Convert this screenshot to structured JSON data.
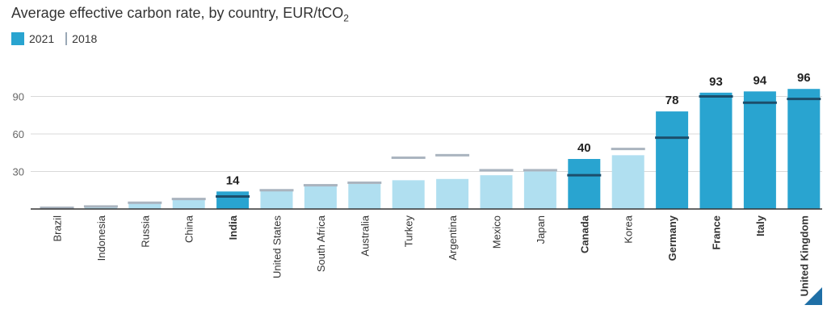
{
  "title": "Average effective carbon rate, by country, EUR/tCO",
  "title_sub": "2",
  "legend": {
    "y2021": "2021",
    "y2018": "2018"
  },
  "colors": {
    "highlight": "#29a4d0",
    "normal": "#b0dff0",
    "line_on_highlight": "#1c4e6b",
    "line_on_normal": "#aab4bf",
    "grid": "#d9d9d9",
    "axis": "#333333"
  },
  "chart_data": {
    "type": "bar",
    "title": "Average effective carbon rate, by country, EUR/tCO2",
    "ylim": [
      0,
      100
    ],
    "yticks": [
      30,
      60,
      90
    ],
    "grid": true,
    "legend_position": "top-left",
    "categories": [
      "Brazil",
      "Indonesia",
      "Russia",
      "China",
      "India",
      "United States",
      "South Africa",
      "Australia",
      "Turkey",
      "Argentina",
      "Mexico",
      "Japan",
      "Canada",
      "Korea",
      "Germany",
      "France",
      "Italy",
      "United Kingdom"
    ],
    "series": [
      {
        "name": "2021",
        "values": [
          1,
          2,
          5,
          8,
          14,
          15,
          19,
          20,
          23,
          24,
          27,
          30,
          40,
          43,
          78,
          93,
          94,
          96
        ]
      },
      {
        "name": "2018",
        "values": [
          1,
          2,
          5,
          8,
          10,
          15,
          19,
          21,
          41,
          43,
          31,
          31,
          27,
          48,
          57,
          90,
          85,
          88
        ]
      }
    ],
    "highlighted": [
      "India",
      "Canada",
      "Germany",
      "France",
      "Italy",
      "United Kingdom"
    ],
    "data_labels": {
      "India": "14",
      "Canada": "40",
      "Germany": "78",
      "France": "93",
      "Italy": "94",
      "United Kingdom": "96"
    }
  }
}
